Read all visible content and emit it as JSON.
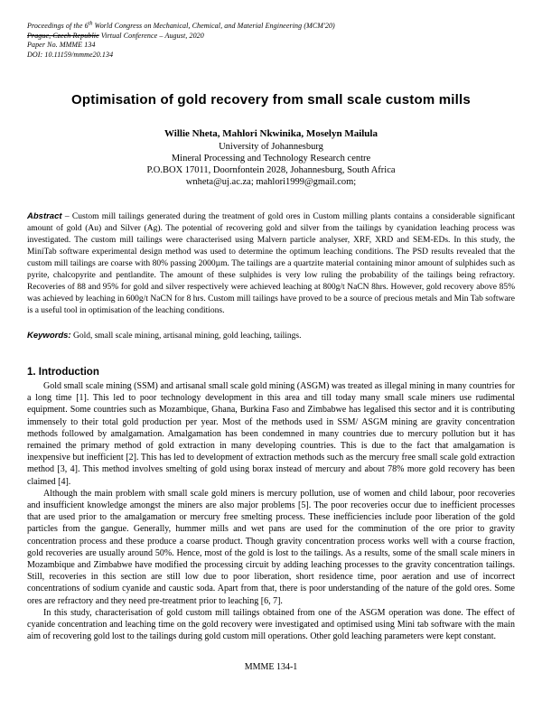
{
  "header": {
    "line1_pre": "Proceedings of the 6",
    "line1_sup": "th",
    "line1_post": " World Congress on Mechanical, Chemical, and Material Engineering (MCM'20)",
    "line2_strike": "Prague, Czech Republic",
    "line2_rest": " Virtual Conference – August, 2020",
    "line3": "Paper No. MMME 134",
    "line4": "DOI: 10.11159/mmme20.134"
  },
  "title": "Optimisation of gold recovery from small scale custom mills",
  "authors": "Willie Nheta, Mahlori Nkwinika, Moselyn Mailula",
  "affiliation": {
    "line1": "University of Johannesburg",
    "line2": "Mineral Processing and Technology Research centre",
    "line3": "P.O.BOX 17011, Doornfontein 2028, Johannesburg, South Africa",
    "line4": "wnheta@uj.ac.za; mahlori1999@gmail.com;"
  },
  "abstract": {
    "label": "Abstract",
    "text": " – Custom mill tailings generated during the treatment of gold ores in Custom milling plants contains a considerable significant amount of gold (Au) and Silver (Ag). The potential of recovering gold and silver from the tailings by cyanidation leaching process was investigated. The custom mill tailings were characterised using Malvern particle analyser, XRF, XRD and SEM-EDs. In this study, the MiniTab software experimental design method was used to determine the optimum leaching conditions.  The PSD results revealed that the custom mill tailings are coarse with 80% passing 2000µm. The tailings are a quartzite material containing minor amount of sulphides such as pyrite, chalcopyrite and pentlandite. The amount of these sulphides is very low ruling the probability of the tailings being refractory. Recoveries of 88 and 95% for gold and silver respectively  were achieved leaching at 800g/t NaCN 8hrs. However, gold recovery above 85%  was achieved by leaching in 600g/t NaCN for 8 hrs. Custom mill tailings have proved to be a source of precious metals and Min Tab software is a useful tool in optimisation of the leaching conditions."
  },
  "keywords": {
    "label": "Keywords:",
    "text": " Gold, small scale mining, artisanal mining, gold leaching, tailings."
  },
  "introduction": {
    "heading": "1. Introduction",
    "paragraphs": [
      "Gold small scale mining (SSM) and artisanal small scale gold mining (ASGM) was treated as illegal mining in many countries for a long time [1]. This led to poor technology development in this area and till today many small scale miners use rudimental equipment. Some countries such as Mozambique, Ghana, Burkina Faso and Zimbabwe has legalised this sector and it is contributing immensely to their total gold production per year. Most of the methods used in SSM/ ASGM mining are gravity concentration methods followed by amalgamation. Amalgamation has been condemned in many countries due to mercury pollution but it has remained the primary method of gold extraction in many developing countries. This is due to the fact that amalgamation is inexpensive but inefficient [2]. This has led to development of extraction methods such as the mercury free small scale gold extraction method [3, 4]. This method involves smelting of gold using borax instead of mercury and about 78% more gold recovery has been claimed [4].",
      "Although the main problem with small scale gold miners is mercury pollution, use of women and child labour, poor recoveries and insufficient knowledge amongst the miners are also major problems [5]. The poor recoveries occur due to inefficient processes that are used prior to the amalgamation or mercury free smelting process. These inefficiencies include poor liberation of the gold particles from the gangue. Generally, hummer mills and wet pans are used for the comminution of the ore prior to gravity concentration process and these produce a coarse product. Though gravity concentration process works well with a course fraction, gold recoveries are usually around 50%. Hence, most of the gold is lost to the tailings. As a results, some of the small scale miners in Mozambique and Zimbabwe have modified the processing circuit by adding leaching processes to the gravity concentration tailings. Still, recoveries in this section are still low due to poor liberation, short residence time, poor aeration and use of incorrect concentrations of sodium cyanide and caustic soda. Apart from that, there is poor understanding of the nature of the gold ores. Some ores are refractory and they need pre-treatment prior to leaching [6, 7].",
      "In this study, characterisation of gold custom mill tailings obtained from one of the ASGM operation was done. The effect of cyanide concentration and leaching time on the gold recovery were investigated and optimised using Mini tab software with the main aim of recovering gold lost to the tailings during gold custom mill operations. Other gold leaching parameters were kept constant."
    ]
  },
  "footer": {
    "page_label": "MMME 134-1"
  }
}
